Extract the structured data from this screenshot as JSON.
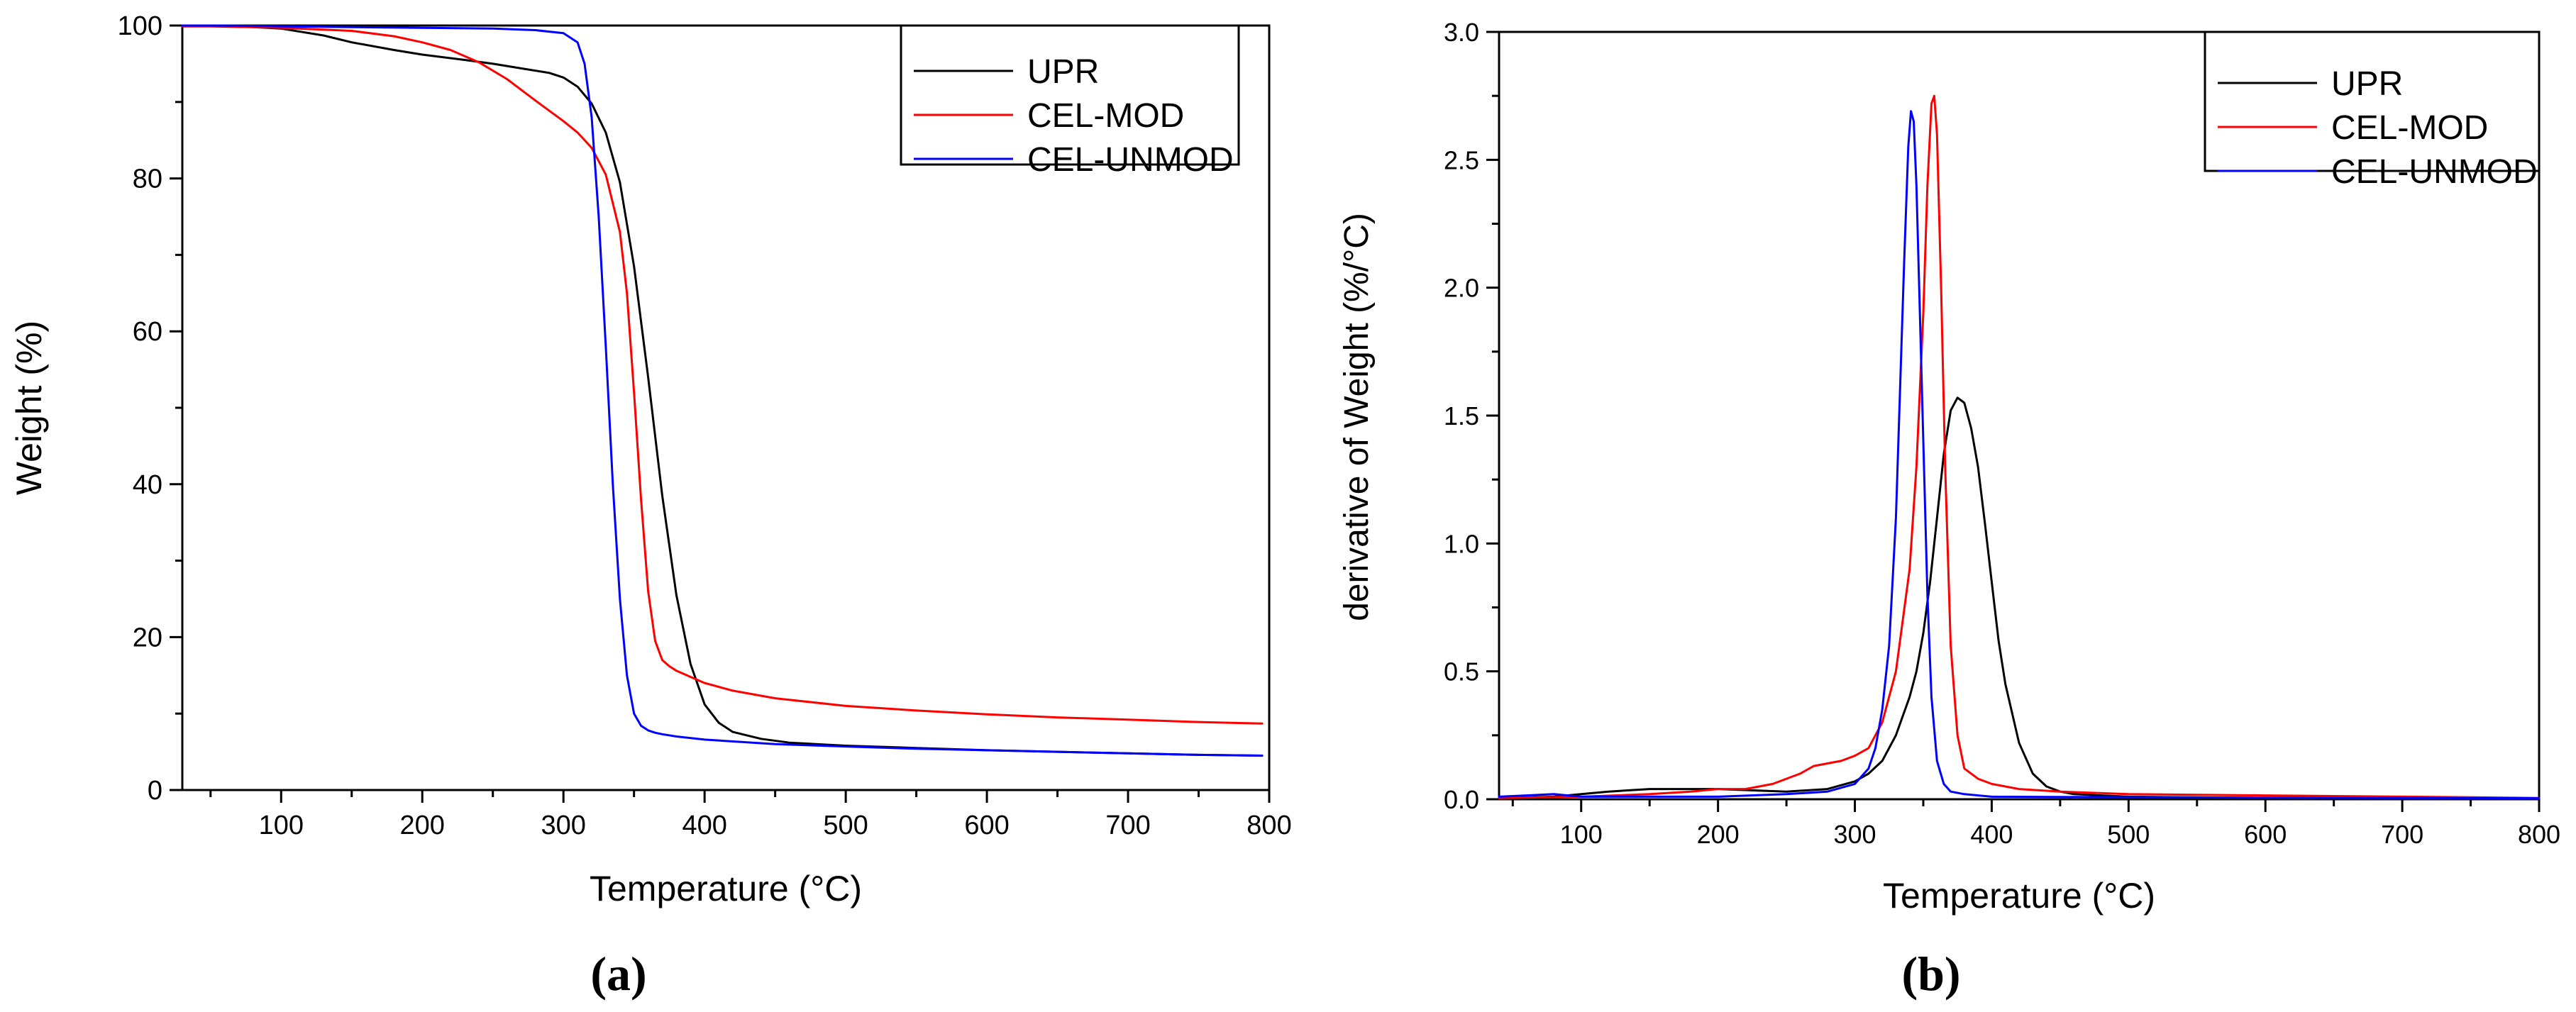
{
  "chart_data": [
    {
      "type": "line",
      "panel": "(a)",
      "title": "",
      "xlabel": "Temperature (°C)",
      "ylabel": "Weight (%)",
      "xlim": [
        30,
        800
      ],
      "ylim": [
        0,
        100
      ],
      "xticks": [
        100,
        200,
        300,
        400,
        500,
        600,
        700,
        800
      ],
      "yticks": [
        0,
        20,
        40,
        60,
        80,
        100
      ],
      "legend_position": "top-right",
      "series": [
        {
          "name": "UPR",
          "color": "#000000",
          "x": [
            30,
            50,
            80,
            100,
            130,
            150,
            180,
            200,
            230,
            250,
            270,
            290,
            300,
            310,
            320,
            330,
            340,
            350,
            360,
            370,
            380,
            390,
            400,
            410,
            420,
            440,
            460,
            500,
            550,
            600,
            650,
            700,
            750,
            795
          ],
          "y": [
            99.9,
            99.9,
            99.8,
            99.6,
            98.7,
            97.8,
            96.8,
            96.2,
            95.5,
            95,
            94.4,
            93.8,
            93.2,
            92,
            89.8,
            86,
            79.5,
            68.5,
            54,
            38.5,
            25.5,
            16.5,
            11.2,
            8.8,
            7.6,
            6.7,
            6.2,
            5.8,
            5.5,
            5.2,
            5,
            4.8,
            4.6,
            4.5
          ]
        },
        {
          "name": "CEL-MOD",
          "color": "#ff0000",
          "x": [
            30,
            60,
            100,
            150,
            180,
            200,
            220,
            240,
            260,
            280,
            300,
            310,
            320,
            330,
            340,
            345,
            350,
            355,
            360,
            365,
            370,
            375,
            380,
            390,
            400,
            420,
            450,
            500,
            550,
            600,
            650,
            700,
            750,
            795
          ],
          "y": [
            99.9,
            99.9,
            99.7,
            99.3,
            98.6,
            97.8,
            96.8,
            95.2,
            93,
            90.2,
            87.5,
            86,
            84,
            80.5,
            73,
            65,
            52,
            38,
            26,
            19.5,
            17,
            16.2,
            15.6,
            14.8,
            14,
            13,
            12,
            11,
            10.4,
            9.9,
            9.5,
            9.2,
            8.9,
            8.7
          ]
        },
        {
          "name": "CEL-UNMOD",
          "color": "#0000ff",
          "x": [
            30,
            60,
            100,
            150,
            200,
            250,
            280,
            300,
            310,
            315,
            320,
            325,
            330,
            335,
            340,
            345,
            350,
            355,
            360,
            365,
            370,
            380,
            400,
            450,
            500,
            550,
            600,
            650,
            700,
            750,
            795
          ],
          "y": [
            100,
            100,
            99.9,
            99.8,
            99.7,
            99.6,
            99.4,
            99,
            97.8,
            95,
            88,
            75,
            58,
            40,
            25,
            15,
            10,
            8.4,
            7.8,
            7.5,
            7.3,
            7,
            6.6,
            6,
            5.7,
            5.4,
            5.2,
            5,
            4.8,
            4.6,
            4.5
          ]
        }
      ]
    },
    {
      "type": "line",
      "panel": "(b)",
      "title": "",
      "xlabel": "Temperature (°C)",
      "ylabel": "derivative of Weight (%/°C)",
      "xlim": [
        40,
        800
      ],
      "ylim": [
        0,
        3.0
      ],
      "xticks": [
        100,
        200,
        300,
        400,
        500,
        600,
        700,
        800
      ],
      "yticks": [
        0.0,
        0.5,
        1.0,
        1.5,
        2.0,
        2.5,
        3.0
      ],
      "ytick_labels": [
        "0.0",
        "0.5",
        "1.0",
        "1.5",
        "2.0",
        "2.5",
        "3.0"
      ],
      "legend_position": "top-right",
      "series": [
        {
          "name": "UPR",
          "color": "#000000",
          "x": [
            40,
            80,
            100,
            120,
            150,
            180,
            200,
            250,
            280,
            300,
            310,
            320,
            330,
            340,
            345,
            350,
            355,
            360,
            365,
            370,
            375,
            380,
            385,
            390,
            395,
            400,
            405,
            410,
            420,
            430,
            440,
            450,
            460,
            480,
            500,
            600,
            700,
            800
          ],
          "y": [
            0.005,
            0.01,
            0.02,
            0.03,
            0.04,
            0.04,
            0.04,
            0.03,
            0.04,
            0.07,
            0.1,
            0.15,
            0.25,
            0.4,
            0.5,
            0.65,
            0.85,
            1.1,
            1.35,
            1.52,
            1.57,
            1.55,
            1.45,
            1.3,
            1.08,
            0.85,
            0.62,
            0.45,
            0.22,
            0.1,
            0.05,
            0.03,
            0.02,
            0.015,
            0.01,
            0.005,
            0.005,
            0.004
          ]
        },
        {
          "name": "CEL-MOD",
          "color": "#ff0000",
          "x": [
            40,
            100,
            150,
            180,
            200,
            220,
            240,
            260,
            270,
            280,
            290,
            300,
            310,
            320,
            330,
            340,
            345,
            350,
            353,
            356,
            358,
            360,
            363,
            366,
            370,
            375,
            380,
            390,
            400,
            420,
            450,
            500,
            600,
            700,
            800
          ],
          "y": [
            0.005,
            0.01,
            0.02,
            0.03,
            0.04,
            0.04,
            0.06,
            0.1,
            0.13,
            0.14,
            0.15,
            0.17,
            0.2,
            0.3,
            0.5,
            0.9,
            1.3,
            1.9,
            2.4,
            2.72,
            2.75,
            2.6,
            2.0,
            1.3,
            0.6,
            0.25,
            0.12,
            0.08,
            0.06,
            0.04,
            0.03,
            0.02,
            0.015,
            0.01,
            0.005
          ]
        },
        {
          "name": "CEL-UNMOD",
          "color": "#0000ff",
          "x": [
            40,
            60,
            80,
            100,
            200,
            250,
            280,
            300,
            310,
            315,
            320,
            325,
            330,
            333,
            336,
            339,
            341,
            343,
            345,
            347,
            350,
            353,
            356,
            360,
            365,
            370,
            380,
            400,
            500,
            600,
            700,
            800
          ],
          "y": [
            0.01,
            0.015,
            0.02,
            0.01,
            0.01,
            0.02,
            0.03,
            0.06,
            0.12,
            0.2,
            0.35,
            0.6,
            1.1,
            1.6,
            2.1,
            2.55,
            2.69,
            2.65,
            2.4,
            2.0,
            1.4,
            0.8,
            0.4,
            0.15,
            0.06,
            0.03,
            0.02,
            0.01,
            0.008,
            0.006,
            0.005,
            0.004
          ]
        }
      ]
    }
  ]
}
